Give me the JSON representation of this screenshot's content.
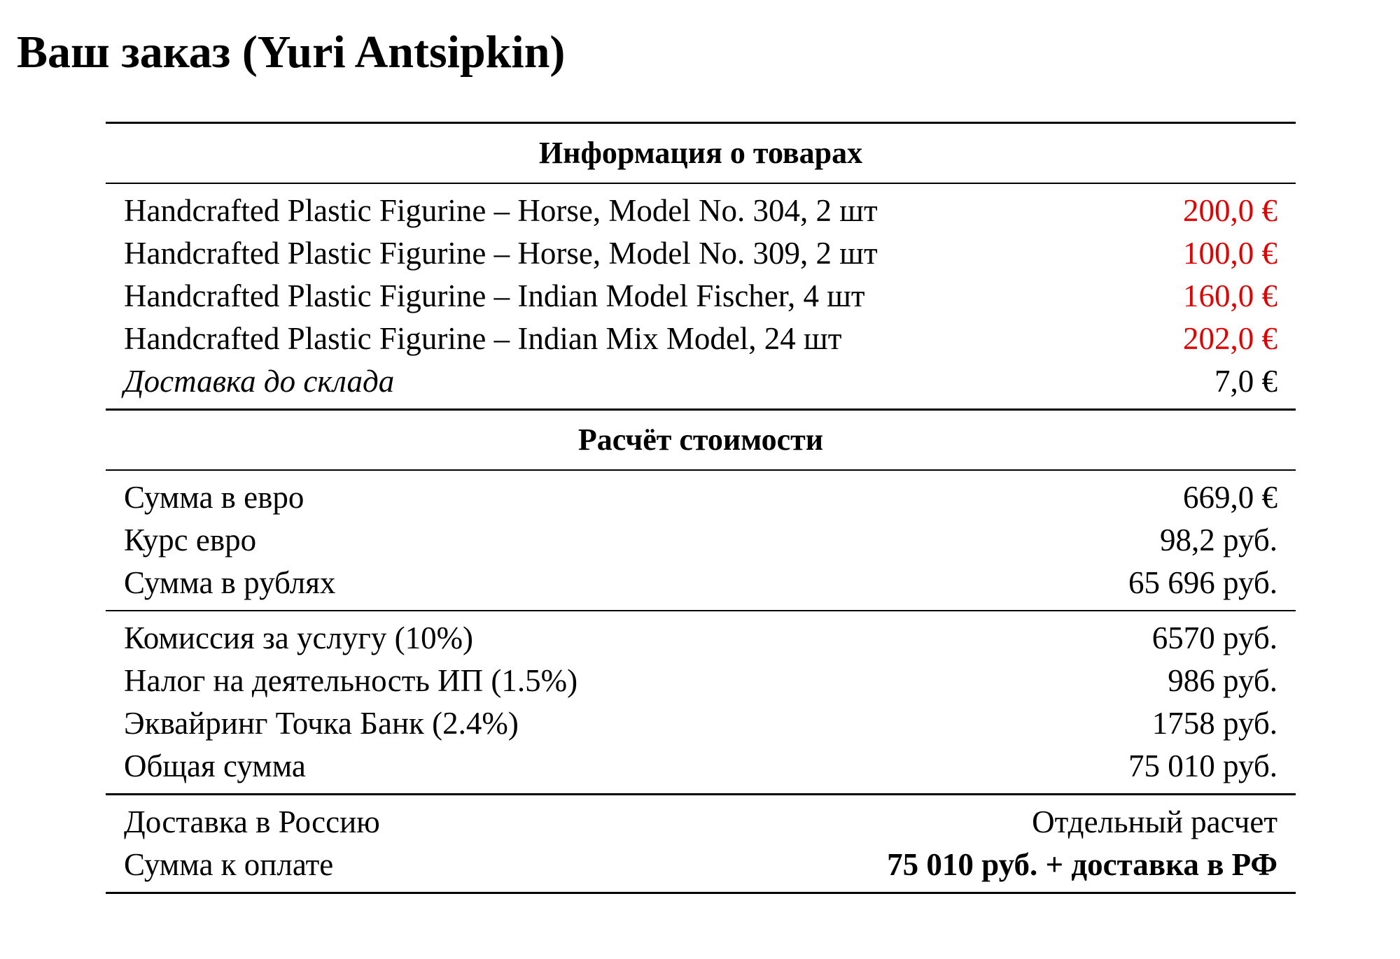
{
  "title": "Ваш заказ (Yuri Antsipkin)",
  "colors": {
    "price_highlight": "#e00000"
  },
  "goods": {
    "heading": "Информация о товарах",
    "items": [
      {
        "name": "Handcrafted Plastic Figurine – Horse, Model No. 304, 2 шт",
        "price": "200,0 €"
      },
      {
        "name": "Handcrafted Plastic Figurine – Horse, Model No. 309, 2 шт",
        "price": "100,0 €"
      },
      {
        "name": "Handcrafted Plastic Figurine – Indian Model Fischer, 4 шт",
        "price": "160,0 €"
      },
      {
        "name": "Handcrafted Plastic Figurine – Indian Mix Model, 24 шт",
        "price": "202,0 €"
      }
    ],
    "warehouse_delivery": {
      "label": "Доставка до склада",
      "value": "7,0 €"
    }
  },
  "calc": {
    "heading": "Расчёт стоимости",
    "group1": [
      {
        "label": "Сумма в евро",
        "value": "669,0 €"
      },
      {
        "label": "Курс евро",
        "value": "98,2 руб."
      },
      {
        "label": "Сумма в рублях",
        "value": "65 696 руб."
      }
    ],
    "group2": [
      {
        "label": "Комиссия за услугу (10%)",
        "value": "6570 руб."
      },
      {
        "label": "Налог на деятельность ИП (1.5%)",
        "value": "986 руб."
      },
      {
        "label": "Эквайринг Точка Банк (2.4%)",
        "value": "1758 руб."
      },
      {
        "label": "Общая сумма",
        "value": "75 010 руб."
      }
    ],
    "group3": [
      {
        "label": "Доставка в Россию",
        "value": "Отдельный расчет"
      },
      {
        "label": "Сумма к оплате",
        "value": "75 010 руб. + доставка в РФ"
      }
    ]
  }
}
